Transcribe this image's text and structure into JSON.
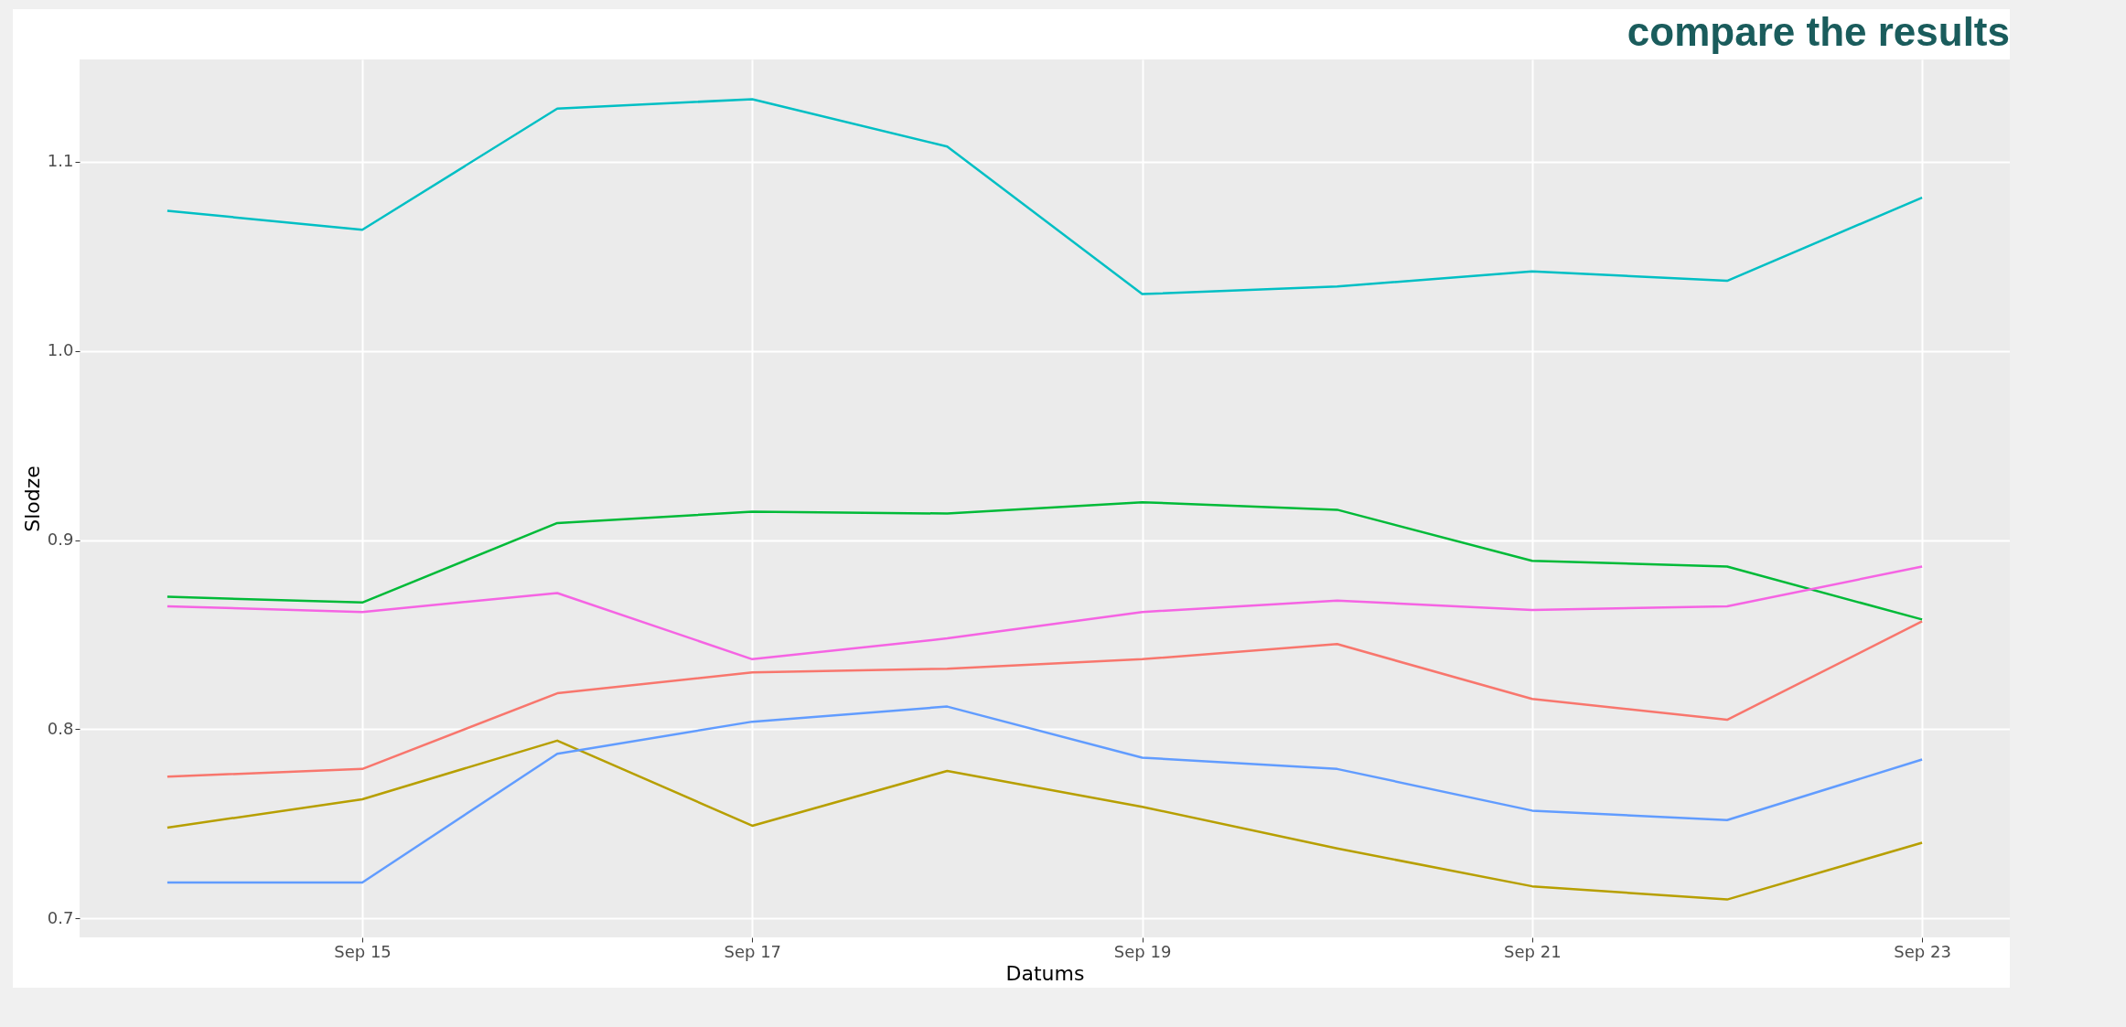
{
  "chart_data": {
    "type": "line",
    "xlabel": "Datums",
    "ylabel": "Slodze",
    "annotations": [
      "compare the results"
    ],
    "x": [
      "--09-14",
      "--09-15",
      "--09-16",
      "--09-17",
      "--09-18",
      "--09-19",
      "--09-20",
      "--09-21",
      "--09-22",
      "--09-23"
    ],
    "series": [
      {
        "color": "#f8766d",
        "values": [
          0.775,
          0.779,
          0.819,
          0.83,
          0.832,
          0.837,
          0.845,
          0.816,
          0.805,
          0.857
        ]
      },
      {
        "color": "#b79f00",
        "values": [
          0.748,
          0.763,
          0.794,
          0.749,
          0.778,
          0.759,
          0.737,
          0.717,
          0.71,
          0.74
        ]
      },
      {
        "color": "#00ba38",
        "values": [
          0.87,
          0.867,
          0.909,
          0.915,
          0.914,
          0.92,
          0.916,
          0.889,
          0.886,
          0.858
        ]
      },
      {
        "color": "#00bfc4",
        "values": [
          1.074,
          1.064,
          1.128,
          1.133,
          1.108,
          1.03,
          1.034,
          1.042,
          1.037,
          1.081
        ]
      },
      {
        "color": "#619cff",
        "values": [
          0.719,
          0.719,
          0.787,
          0.804,
          0.812,
          0.785,
          0.779,
          0.757,
          0.752,
          0.784
        ]
      },
      {
        "color": "#f564e3",
        "values": [
          0.865,
          0.862,
          0.872,
          0.837,
          0.848,
          0.862,
          0.868,
          0.863,
          0.865,
          0.886
        ]
      }
    ],
    "xlim": [
      "--09-13T13:12",
      "--09-23T10:48"
    ],
    "xticks": [
      {
        "value": "--09-15",
        "label": "Sep 15"
      },
      {
        "value": "--09-17",
        "label": "Sep 17"
      },
      {
        "value": "--09-19",
        "label": "Sep 19"
      },
      {
        "value": "--09-21",
        "label": "Sep 21"
      },
      {
        "value": "--09-23",
        "label": "Sep 23"
      }
    ],
    "ylim": [
      0.69,
      1.154
    ],
    "yticks": [
      {
        "value": 0.7,
        "label": "0.7"
      },
      {
        "value": 0.8,
        "label": "0.8"
      },
      {
        "value": 0.9,
        "label": "0.9"
      },
      {
        "value": 1.0,
        "label": "1.0"
      },
      {
        "value": 1.1,
        "label": "1.1"
      }
    ],
    "grid": true,
    "legend": false,
    "marker": "none",
    "line_style": "solid"
  }
}
